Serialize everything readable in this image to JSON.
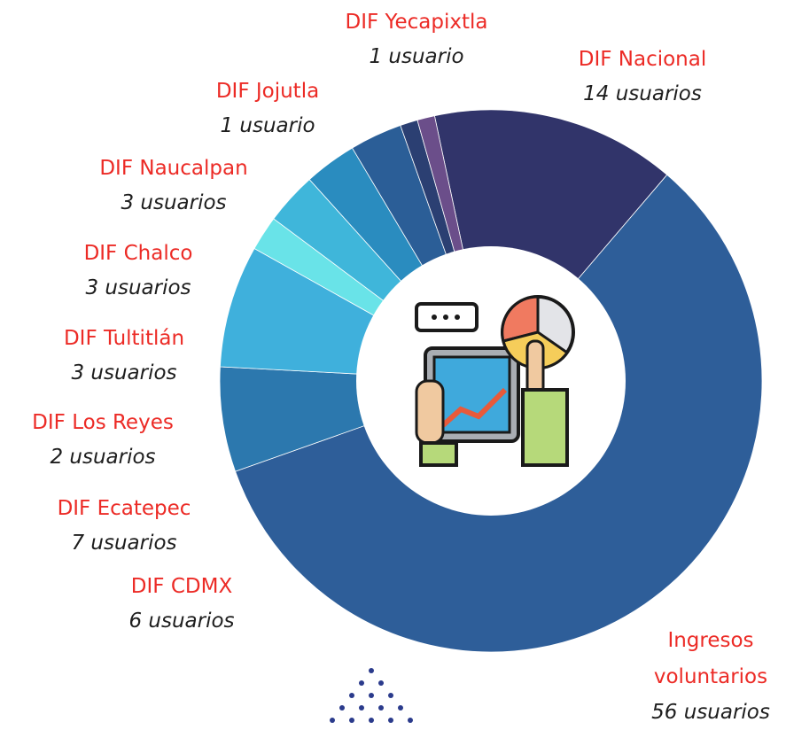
{
  "chart_data": {
    "type": "donut",
    "categories": [
      "DIF Nacional",
      "Ingresos voluntarios",
      "DIF CDMX",
      "DIF Ecatepec",
      "DIF Los Reyes",
      "DIF Tultitlán",
      "DIF Chalco",
      "DIF Naucalpan",
      "DIF Jojutla",
      "DIF Yecapixtla"
    ],
    "values": [
      14,
      56,
      6,
      7,
      2,
      3,
      3,
      3,
      1,
      1
    ],
    "value_labels": [
      "14 usuarios",
      "56 usuarios",
      "6 usuarios",
      "7 usuarios",
      "2 usuarios",
      "3 usuarios",
      "3 usuarios",
      "3 usuarios",
      "1 usuario",
      "1 usuario"
    ],
    "colors": [
      "#31346a",
      "#2e5e99",
      "#2c78ae",
      "#3fb0dc",
      "#69e3e8",
      "#3fb6da",
      "#2a8cbf",
      "#2b5e97",
      "#2b3f72",
      "#6b4e8a"
    ]
  }
}
